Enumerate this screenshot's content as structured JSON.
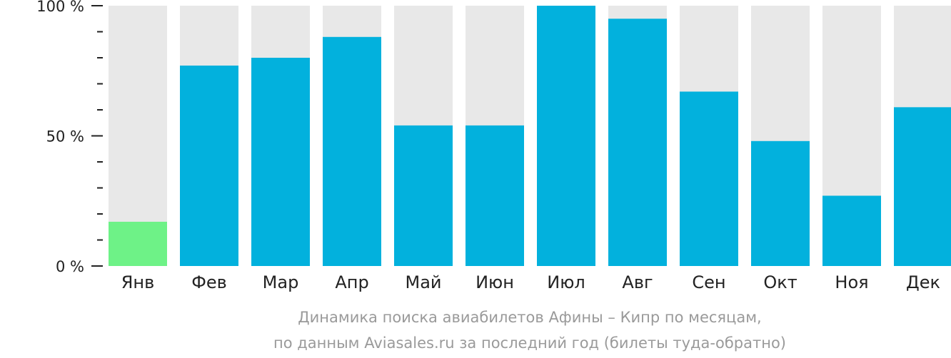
{
  "chart_data": {
    "type": "bar",
    "categories": [
      "Янв",
      "Фев",
      "Мар",
      "Апр",
      "Май",
      "Июн",
      "Июл",
      "Авг",
      "Сен",
      "Окт",
      "Ноя",
      "Дек"
    ],
    "values": [
      17,
      77,
      80,
      88,
      54,
      54,
      100,
      95,
      67,
      48,
      27,
      61
    ],
    "ylim": [
      0,
      100
    ],
    "yticks": [
      {
        "value": 0,
        "label": "0 %"
      },
      {
        "value": 50,
        "label": "50 %"
      },
      {
        "value": 100,
        "label": "100 %"
      }
    ],
    "minor_tick_step": 10,
    "grid": false,
    "colors": {
      "bar": "#02b1dd",
      "bar_min": "#6ef287",
      "bar_background": "#e8e8e8",
      "axis": "#222222"
    },
    "caption": [
      "Динамика поиска авиабилетов Афины – Кипр по месяцам,",
      "по данным Aviasales.ru за последний год (билеты туда-обратно)"
    ]
  }
}
